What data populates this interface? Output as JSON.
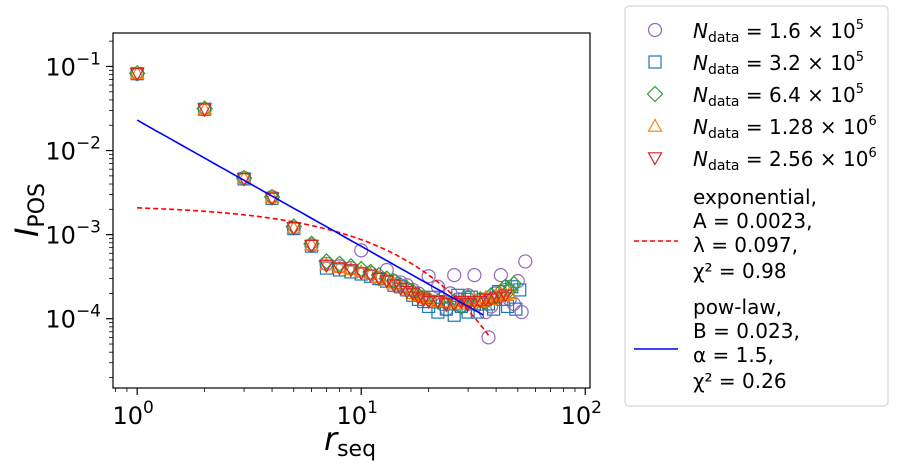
{
  "chart_data": {
    "type": "scatter",
    "title": "",
    "xlabel": {
      "main": "r",
      "sub": "seq"
    },
    "ylabel": {
      "main": "I",
      "sub": "POS"
    },
    "xscale": "log",
    "yscale": "log",
    "xlim": [
      0.78,
      105
    ],
    "ylim": [
      1.5e-05,
      0.25
    ],
    "xticks": [
      {
        "value": 1,
        "base": "10",
        "exp": "0"
      },
      {
        "value": 10,
        "base": "10",
        "exp": "1"
      },
      {
        "value": 100,
        "base": "10",
        "exp": "2"
      }
    ],
    "yticks": [
      {
        "value": 0.0001,
        "base": "10",
        "exp": "−4"
      },
      {
        "value": 0.001,
        "base": "10",
        "exp": "−3"
      },
      {
        "value": 0.01,
        "base": "10",
        "exp": "−2"
      },
      {
        "value": 0.1,
        "base": "10",
        "exp": "−1"
      }
    ],
    "legend_position": "outside-right",
    "series": [
      {
        "name": "N_data = 1.6 × 10^5",
        "label_main": "N",
        "label_sub": "data",
        "label_eq": " = 1.6 × 10",
        "label_exp": "5",
        "marker": "circle",
        "color": "#9467bd",
        "points": [
          [
            1,
            0.082
          ],
          [
            2,
            0.031
          ],
          [
            3,
            0.0047
          ],
          [
            4,
            0.0028
          ],
          [
            5,
            0.0012
          ],
          [
            6,
            0.00075
          ],
          [
            7,
            0.00045
          ],
          [
            8,
            0.00042
          ],
          [
            9,
            0.0004
          ],
          [
            10,
            0.00065
          ],
          [
            11,
            0.00035
          ],
          [
            12,
            0.0003
          ],
          [
            13,
            0.00038
          ],
          [
            14,
            0.00028
          ],
          [
            15,
            0.00027
          ],
          [
            16,
            0.00025
          ],
          [
            17,
            0.00022
          ],
          [
            18,
            0.0002
          ],
          [
            19,
            0.00018
          ],
          [
            20,
            0.00032
          ],
          [
            21,
            0.00016
          ],
          [
            22,
            0.00024
          ],
          [
            23,
            0.00015
          ],
          [
            24,
            0.00013
          ],
          [
            25,
            0.0002
          ],
          [
            26,
            0.00033
          ],
          [
            27,
            0.00017
          ],
          [
            28,
            0.00014
          ],
          [
            30,
            0.00019
          ],
          [
            32,
            0.00033
          ],
          [
            34,
            0.00015
          ],
          [
            36,
            0.00012
          ],
          [
            37,
            6e-05
          ],
          [
            38,
            0.00014
          ],
          [
            40,
            0.0002
          ],
          [
            42,
            0.00033
          ],
          [
            44,
            0.00022
          ],
          [
            46,
            0.00017
          ],
          [
            48,
            0.00015
          ],
          [
            50,
            0.00028
          ],
          [
            52,
            0.00012
          ],
          [
            54,
            0.00048
          ]
        ]
      },
      {
        "name": "N_data = 3.2 × 10^5",
        "label_main": "N",
        "label_sub": "data",
        "label_eq": " = 3.2 × 10",
        "label_exp": "5",
        "marker": "square",
        "color": "#1f77b4",
        "points": [
          [
            1,
            0.082
          ],
          [
            2,
            0.031
          ],
          [
            3,
            0.0046
          ],
          [
            4,
            0.0027
          ],
          [
            5,
            0.00118
          ],
          [
            6,
            0.00073
          ],
          [
            7,
            0.0004
          ],
          [
            8,
            0.00038
          ],
          [
            9,
            0.00036
          ],
          [
            10,
            0.00034
          ],
          [
            11,
            0.00032
          ],
          [
            12,
            0.0003
          ],
          [
            13,
            0.00028
          ],
          [
            14,
            0.00025
          ],
          [
            15,
            0.00024
          ],
          [
            16,
            0.00022
          ],
          [
            17,
            0.00019
          ],
          [
            18,
            0.00017
          ],
          [
            19,
            0.00016
          ],
          [
            20,
            0.00014
          ],
          [
            21,
            0.00018
          ],
          [
            22,
            0.00012
          ],
          [
            23,
            0.00016
          ],
          [
            24,
            0.00013
          ],
          [
            25,
            0.00015
          ],
          [
            26,
            0.00011
          ],
          [
            27,
            0.00019
          ],
          [
            28,
            0.00014
          ],
          [
            29,
            0.00017
          ],
          [
            30,
            0.00012
          ],
          [
            31,
            0.00018
          ],
          [
            32,
            0.00015
          ],
          [
            33,
            0.00012
          ],
          [
            35,
            0.00017
          ],
          [
            37,
            0.00015
          ],
          [
            39,
            0.00013
          ],
          [
            41,
            0.00021
          ],
          [
            43,
            0.00017
          ],
          [
            45,
            0.00014
          ],
          [
            47,
            0.00024
          ],
          [
            49,
            0.00013
          ],
          [
            51,
            0.00022
          ]
        ]
      },
      {
        "name": "N_data = 6.4 × 10^5",
        "label_main": "N",
        "label_sub": "data",
        "label_eq": " = 6.4 × 10",
        "label_exp": "5",
        "marker": "diamond",
        "color": "#2ca02c",
        "points": [
          [
            1,
            0.083
          ],
          [
            2,
            0.0315
          ],
          [
            3,
            0.0047
          ],
          [
            4,
            0.0028
          ],
          [
            5,
            0.00125
          ],
          [
            6,
            0.00078
          ],
          [
            7,
            0.00048
          ],
          [
            8,
            0.00045
          ],
          [
            9,
            0.00042
          ],
          [
            10,
            0.00039
          ],
          [
            11,
            0.00036
          ],
          [
            12,
            0.00033
          ],
          [
            13,
            0.0003
          ],
          [
            14,
            0.00028
          ],
          [
            15,
            0.00025
          ],
          [
            16,
            0.00023
          ],
          [
            17,
            0.00021
          ],
          [
            18,
            0.00019
          ],
          [
            19,
            0.00018
          ],
          [
            20,
            0.00017
          ],
          [
            22,
            0.00016
          ],
          [
            24,
            0.00015
          ],
          [
            26,
            0.00016
          ],
          [
            28,
            0.00014
          ],
          [
            30,
            0.00018
          ],
          [
            32,
            0.00015
          ],
          [
            34,
            0.00017
          ],
          [
            36,
            0.00016
          ],
          [
            38,
            0.00019
          ],
          [
            40,
            0.00018
          ],
          [
            42,
            0.00021
          ],
          [
            44,
            0.00024
          ],
          [
            46,
            0.00022
          ],
          [
            48,
            0.00026
          ]
        ]
      },
      {
        "name": "N_data = 1.28 × 10^6",
        "label_main": "N",
        "label_sub": "data",
        "label_eq": " = 1.28 × 10",
        "label_exp": "6",
        "marker": "triangle-up",
        "color": "#ff7f0e",
        "points": [
          [
            1,
            0.083
          ],
          [
            2,
            0.031
          ],
          [
            3,
            0.0047
          ],
          [
            4,
            0.0028
          ],
          [
            5,
            0.0012
          ],
          [
            6,
            0.00076
          ],
          [
            7,
            0.00044
          ],
          [
            8,
            0.00041
          ],
          [
            9,
            0.00039
          ],
          [
            10,
            0.00036
          ],
          [
            11,
            0.00034
          ],
          [
            12,
            0.00031
          ],
          [
            13,
            0.00029
          ],
          [
            14,
            0.00026
          ],
          [
            15,
            0.00024
          ],
          [
            16,
            0.00022
          ],
          [
            17,
            0.0002
          ],
          [
            18,
            0.00019
          ],
          [
            19,
            0.00018
          ],
          [
            20,
            0.00017
          ],
          [
            22,
            0.00016
          ],
          [
            24,
            0.00016
          ],
          [
            26,
            0.00015
          ],
          [
            28,
            0.00016
          ],
          [
            30,
            0.00015
          ],
          [
            32,
            0.00017
          ],
          [
            34,
            0.00016
          ],
          [
            36,
            0.00018
          ],
          [
            38,
            0.00017
          ],
          [
            40,
            0.00019
          ],
          [
            42,
            0.0002
          ],
          [
            44,
            0.00019
          ],
          [
            46,
            0.0002
          ]
        ]
      },
      {
        "name": "N_data = 2.56 × 10^6",
        "label_main": "N",
        "label_sub": "data",
        "label_eq": " = 2.56 × 10",
        "label_exp": "6",
        "marker": "triangle-down",
        "color": "#d62728",
        "points": [
          [
            1,
            0.082
          ],
          [
            2,
            0.031
          ],
          [
            3,
            0.0046
          ],
          [
            4,
            0.0027
          ],
          [
            5,
            0.0012
          ],
          [
            6,
            0.00074
          ],
          [
            7,
            0.00043
          ],
          [
            8,
            0.0004
          ],
          [
            9,
            0.00038
          ],
          [
            10,
            0.00035
          ],
          [
            11,
            0.00033
          ],
          [
            12,
            0.0003
          ],
          [
            13,
            0.00028
          ],
          [
            14,
            0.00025
          ],
          [
            15,
            0.00023
          ],
          [
            16,
            0.00021
          ],
          [
            17,
            0.0002
          ],
          [
            18,
            0.00018
          ],
          [
            19,
            0.00017
          ],
          [
            20,
            0.00016
          ],
          [
            22,
            0.00016
          ],
          [
            24,
            0.00015
          ],
          [
            26,
            0.00015
          ],
          [
            28,
            0.00016
          ],
          [
            30,
            0.00015
          ],
          [
            32,
            0.00016
          ],
          [
            34,
            0.00016
          ],
          [
            36,
            0.00017
          ],
          [
            38,
            0.00017
          ],
          [
            40,
            0.00018
          ],
          [
            42,
            0.00018
          ],
          [
            44,
            0.00019
          ]
        ]
      }
    ],
    "fits": [
      {
        "name": "exponential",
        "color": "#ff0000",
        "dash": true,
        "params": {
          "A": 0.0023,
          "lambda": 0.097,
          "chi2_nu": 0.98
        },
        "x_range": [
          1,
          37
        ],
        "label_lines": [
          "exponential,",
          "A = 0.0023,",
          "λ = 0.097,",
          "χ² = 0.98"
        ]
      },
      {
        "name": "pow-law",
        "color": "#0000ff",
        "dash": false,
        "params": {
          "B": 0.023,
          "alpha": 1.5,
          "chi2_nu": 0.26
        },
        "x_range": [
          1,
          35
        ],
        "label_lines": [
          "pow-law,",
          "B = 0.023,",
          "α = 1.5,",
          "χ² = 0.26"
        ]
      }
    ]
  }
}
